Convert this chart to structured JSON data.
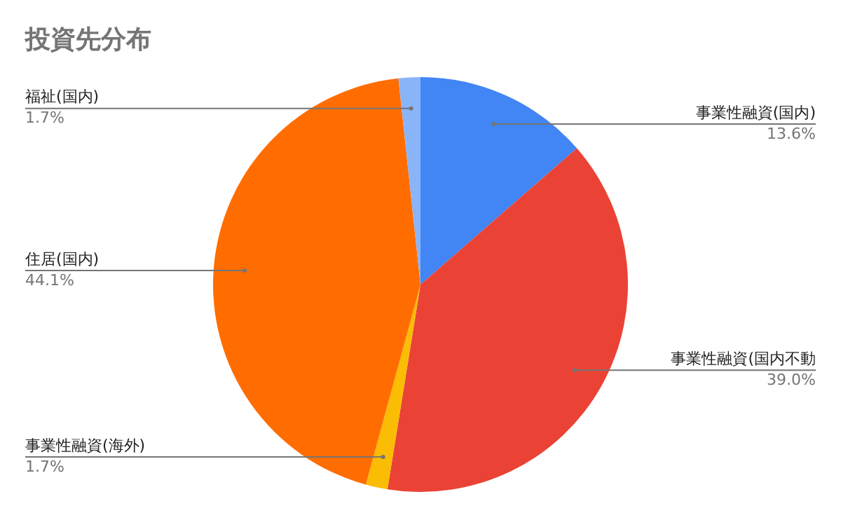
{
  "chart_data": {
    "type": "pie",
    "title": "投資先分布",
    "categories": [
      "事業性融資(国内)",
      "事業性融資(国内不動",
      "事業性融資(海外)",
      "住居(国内)",
      "福祉(国内)"
    ],
    "values": [
      13.6,
      39.0,
      1.7,
      44.1,
      1.7
    ],
    "value_labels": [
      "13.6%",
      "39.0%",
      "1.7%",
      "44.1%",
      "1.7%"
    ],
    "colors": [
      "#4285f4",
      "#ea4335",
      "#fbbc04",
      "#ff6d01",
      "#8ab4f8"
    ]
  }
}
